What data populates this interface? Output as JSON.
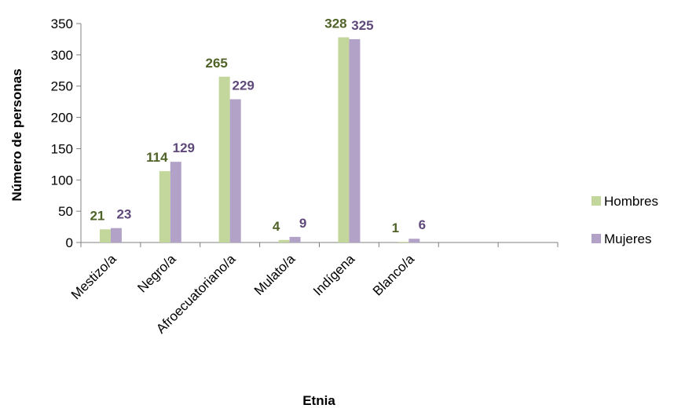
{
  "chart_data": {
    "type": "bar",
    "title": "",
    "xlabel": "Etnia",
    "ylabel": "Número de personas",
    "categories": [
      "Mestizo/a",
      "Negro/a",
      "Afroecuatoriano/a",
      "Mulato/a",
      "Indígena",
      "Blanco/a"
    ],
    "series": [
      {
        "name": "Hombres",
        "values": [
          21,
          114,
          265,
          4,
          328,
          1
        ],
        "color": "#c3d69b",
        "label_color": "#4f6228"
      },
      {
        "name": "Mujeres",
        "values": [
          23,
          129,
          229,
          9,
          325,
          6
        ],
        "color": "#b3a2c7",
        "label_color": "#5f497a"
      }
    ],
    "ylim": [
      0,
      350
    ],
    "yticks": [
      0,
      50,
      100,
      150,
      200,
      250,
      300,
      350
    ],
    "grid": false,
    "legend_position": "right",
    "data_labels": true
  }
}
